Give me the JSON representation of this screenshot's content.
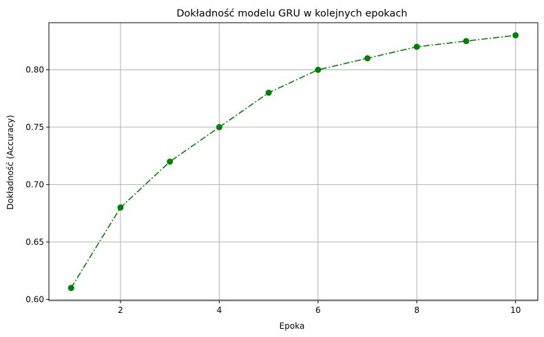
{
  "chart_data": {
    "type": "line",
    "title": "Dokładność modelu GRU w kolejnych epokach",
    "xlabel": "Epoka",
    "ylabel": "Dokładność (Accuracy)",
    "x": [
      1,
      2,
      3,
      4,
      5,
      6,
      7,
      8,
      9,
      10
    ],
    "series": [
      {
        "values": [
          0.61,
          0.68,
          0.72,
          0.75,
          0.78,
          0.8,
          0.81,
          0.82,
          0.825,
          0.83
        ],
        "color": "#008000",
        "line_style": "dash-dot",
        "marker": "circle"
      }
    ],
    "xlim": [
      0.55,
      10.45
    ],
    "ylim": [
      0.599,
      0.841
    ],
    "x_ticks": [
      "2",
      "4",
      "6",
      "8",
      "10"
    ],
    "y_ticks": [
      "0.60",
      "0.65",
      "0.70",
      "0.75",
      "0.80"
    ],
    "grid": true,
    "grid_color": "#b0b0b0"
  }
}
